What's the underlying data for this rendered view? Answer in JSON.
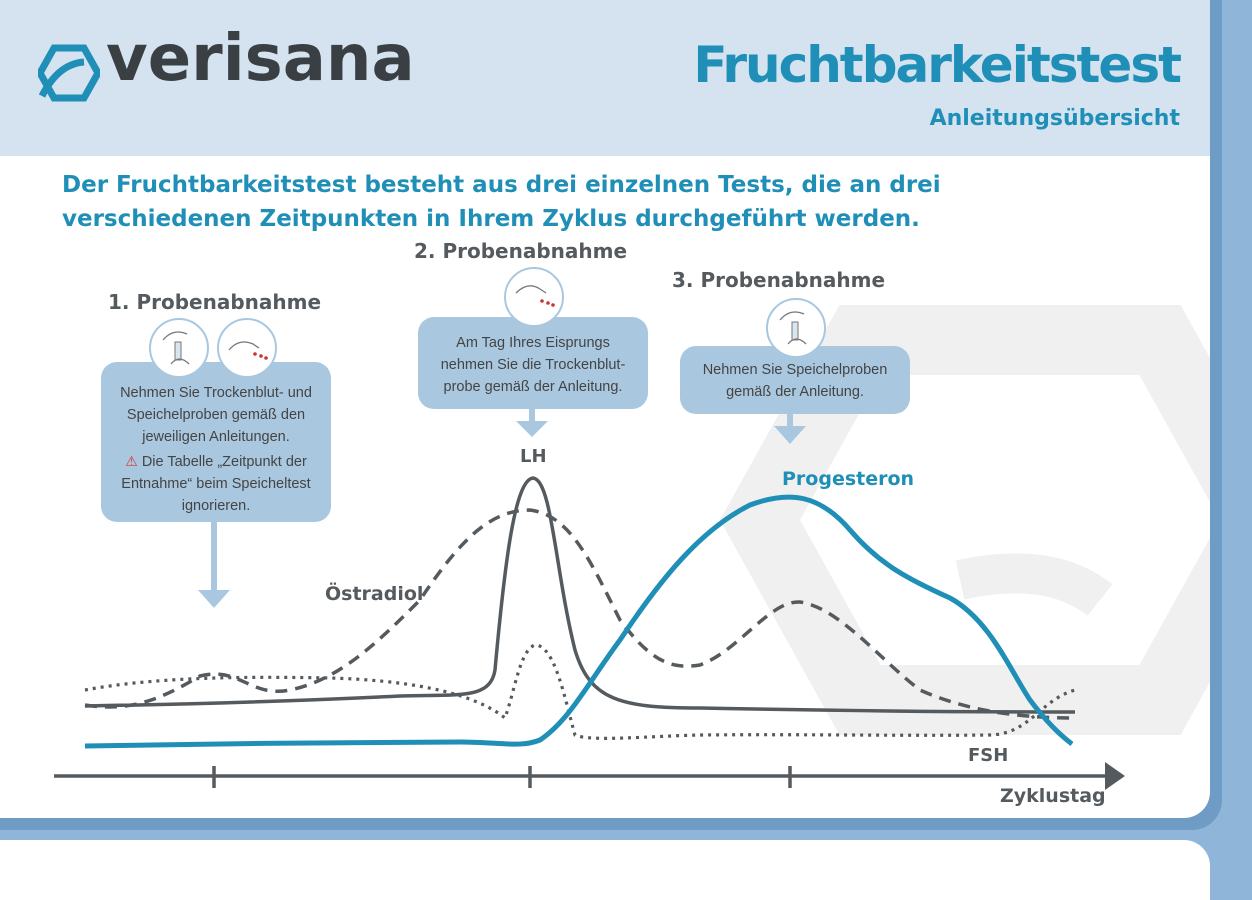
{
  "header": {
    "brand": "verisana",
    "title": "Fruchtbarkeitstest",
    "subtitle": "Anleitungsübersicht"
  },
  "intro": "Der Fruchtbarkeitstest besteht aus drei einzelnen Tests, die an drei verschiedenen Zeitpunkten in Ihrem Zyklus durchgeführt werden.",
  "steps": [
    {
      "title": "1. Probenabnahme",
      "text": "Nehmen Sie Trockenblut- und Speichelproben gemäß den jeweiligen Anleitungen.",
      "warning": "Die Tabelle „Zeitpunkt der Entnahme“ beim Speicheltest ignorieren."
    },
    {
      "title": "2. Probenabnahme",
      "text": "Am Tag Ihres Eisprungs nehmen Sie die Trockenblut-probe gemäß der Anleitung."
    },
    {
      "title": "3. Probenabnahme",
      "text": "Nehmen Sie Speichelproben gemäß der Anleitung."
    }
  ],
  "chart": {
    "labels": {
      "lh": "LH",
      "oestradiol": "Östradiol",
      "progesteron": "Progesteron",
      "fsh": "FSH",
      "xaxis": "Zyklustag"
    },
    "colors": {
      "accent": "#1f8fb8",
      "curve": "#555a5e",
      "bubble": "#a9c8e0"
    }
  }
}
